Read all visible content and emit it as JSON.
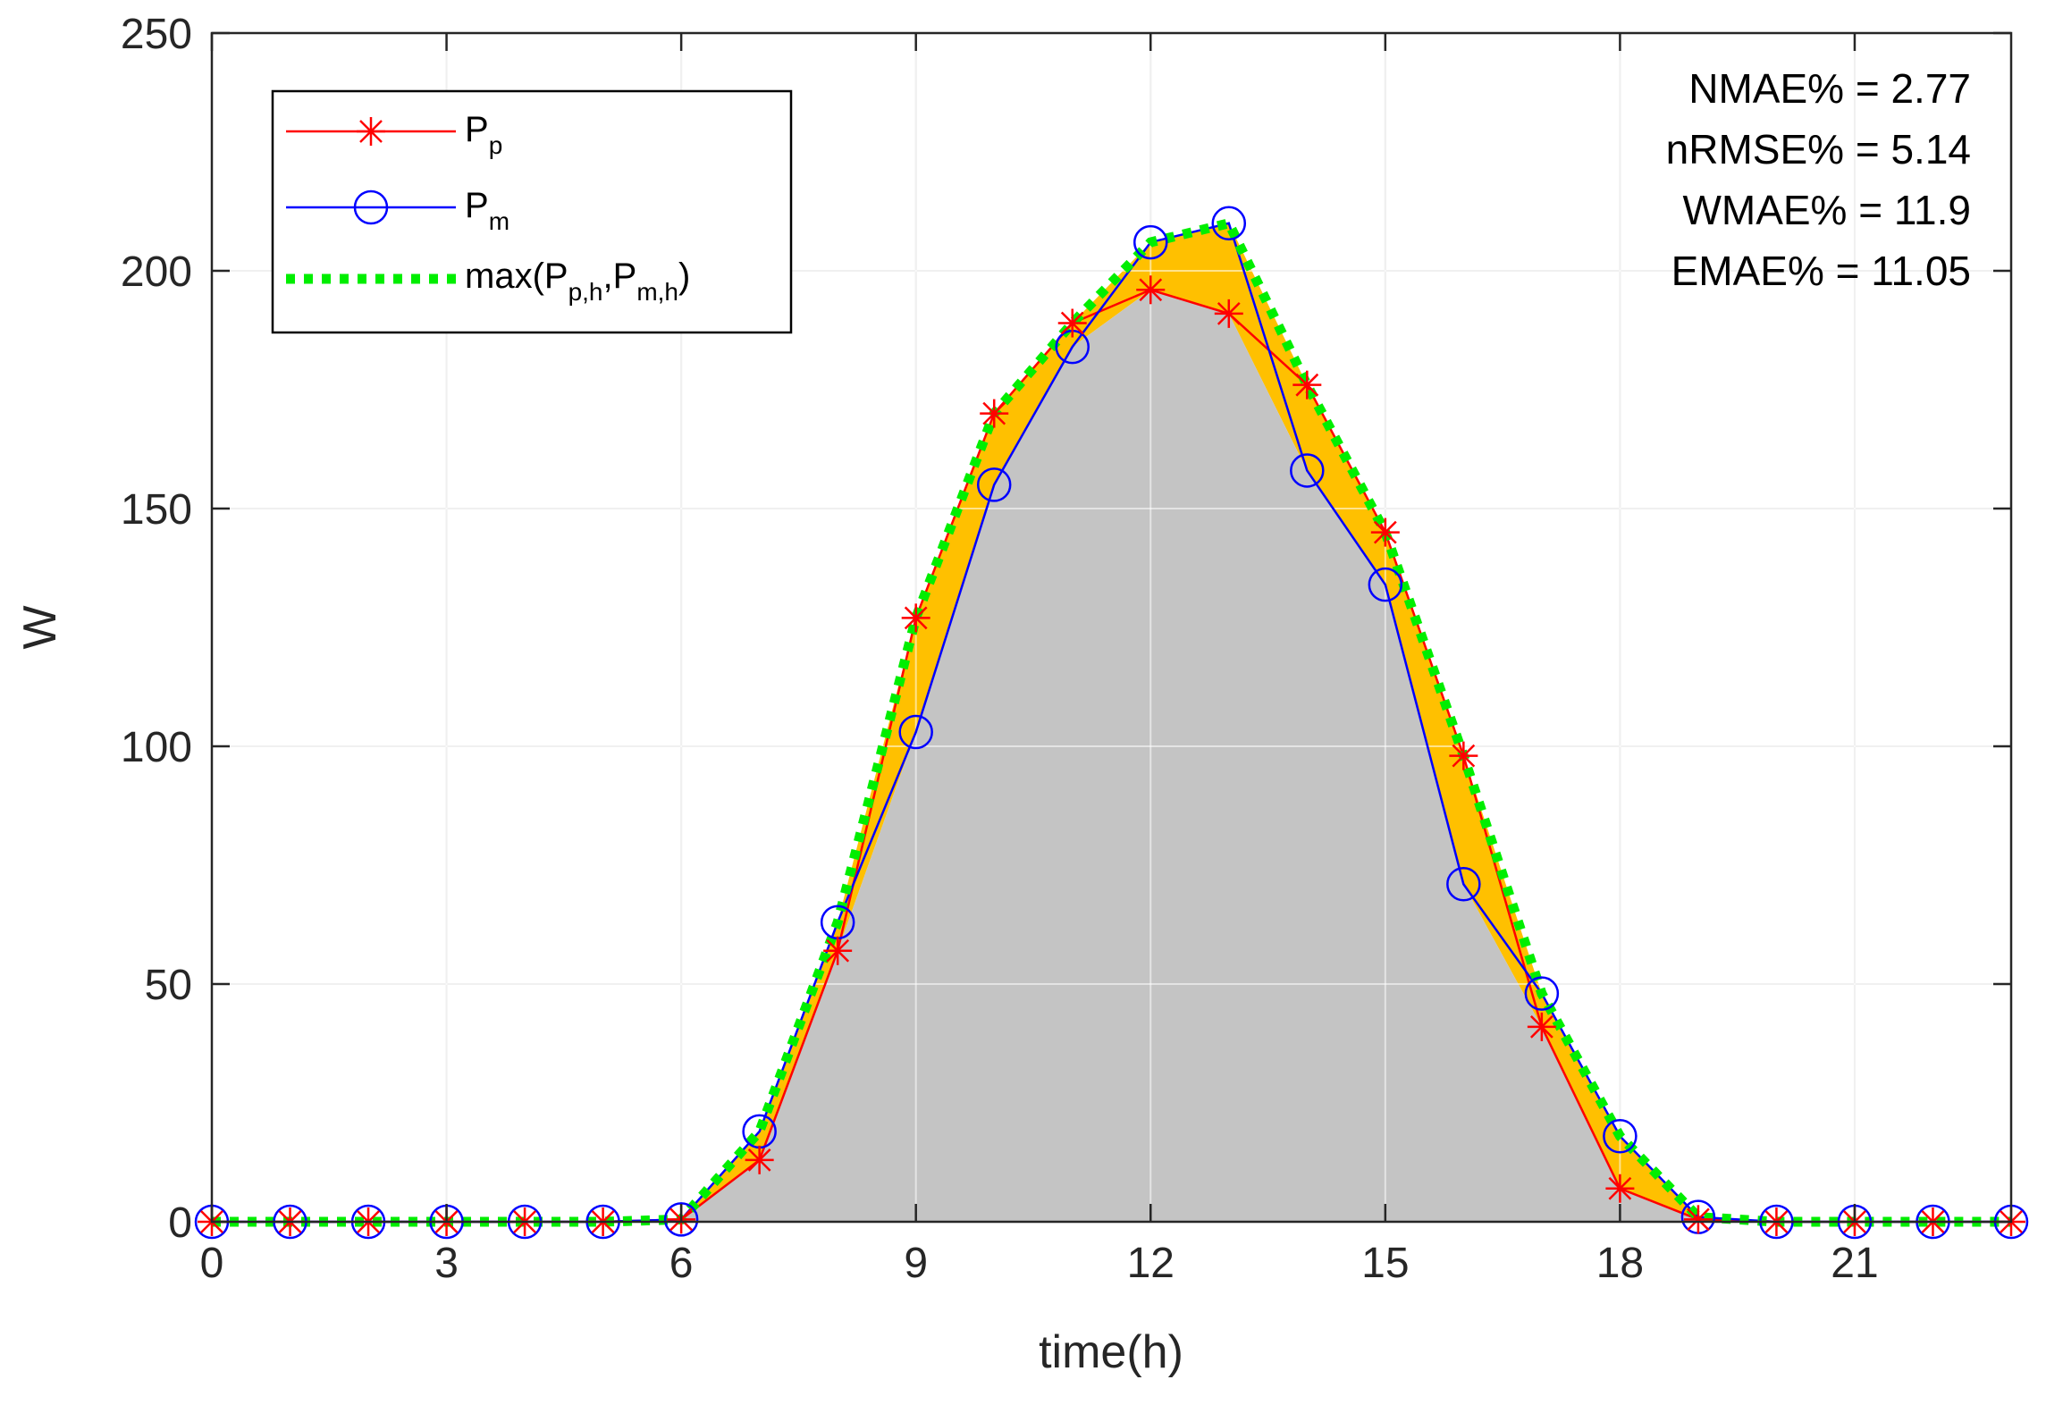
{
  "chart_data": {
    "type": "line",
    "title": "",
    "xlabel": "time(h)",
    "ylabel": "W",
    "xlim": [
      0,
      23
    ],
    "ylim": [
      0,
      250
    ],
    "xticks": [
      0,
      3,
      6,
      9,
      12,
      15,
      18,
      21
    ],
    "yticks": [
      0,
      50,
      100,
      150,
      200,
      250
    ],
    "grid": true,
    "legend_position": "top-left",
    "x": [
      0,
      1,
      2,
      3,
      4,
      5,
      6,
      7,
      8,
      9,
      10,
      11,
      12,
      13,
      14,
      15,
      16,
      17,
      18,
      19,
      20,
      21,
      22,
      23
    ],
    "series": [
      {
        "name": "P_p",
        "legend_main": "P",
        "legend_sub": "p",
        "color": "#ff0000",
        "marker": "asterisk",
        "values": [
          0,
          0,
          0,
          0,
          0,
          0,
          0.5,
          13,
          57,
          127,
          170,
          189,
          196,
          191,
          176,
          145,
          98,
          41,
          7,
          0.5,
          0,
          0,
          0,
          0
        ]
      },
      {
        "name": "P_m",
        "legend_main": "P",
        "legend_sub": "m",
        "color": "#0000ff",
        "marker": "circle",
        "values": [
          0,
          0,
          0,
          0,
          0,
          0,
          0.5,
          19,
          63,
          103,
          155,
          184,
          206,
          210,
          158,
          134,
          71,
          48,
          18,
          1,
          0,
          0,
          0,
          0
        ]
      },
      {
        "name": "max(P_p,h,P_m,h)",
        "legend_parts": [
          "max(P",
          "p,h",
          ",P",
          "m,h",
          ")"
        ],
        "color": "#00ee00",
        "style": "dotted",
        "values": [
          0,
          0,
          0,
          0,
          0,
          0,
          0.5,
          19,
          63,
          127,
          170,
          189,
          206,
          210,
          176,
          145,
          98,
          48,
          18,
          1,
          0,
          0,
          0,
          0
        ]
      }
    ],
    "fill_colors": {
      "common_area": "#c4c4c4",
      "difference_area": "#ffc000"
    },
    "annotations": [
      "NMAE% = 2.77",
      "nRMSE% = 5.14",
      "WMAE% = 11.9",
      "EMAE% = 11.05"
    ]
  }
}
